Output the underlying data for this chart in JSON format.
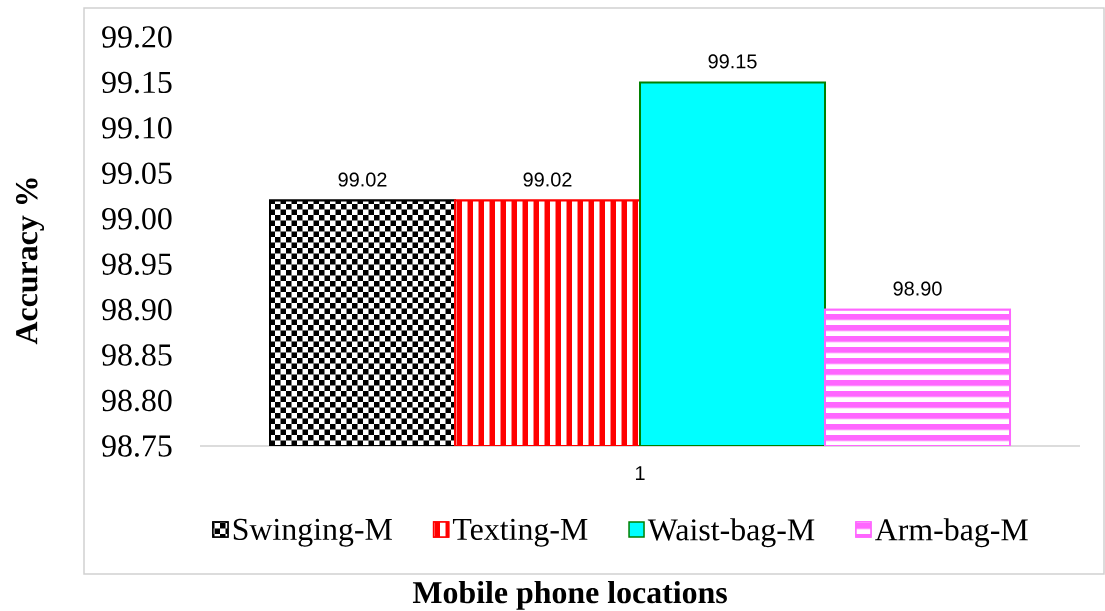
{
  "chart_data": {
    "type": "bar",
    "xlabel": "Mobile phone locations",
    "ylabel": "Accuracy %",
    "categories": [
      "1"
    ],
    "series": [
      {
        "name": "Swinging-M",
        "color": "#000000",
        "values": [
          99.02
        ],
        "value_labels": [
          "99.02"
        ]
      },
      {
        "name": "Texting-M",
        "color": "#ff0000",
        "values": [
          99.02
        ],
        "value_labels": [
          "99.02"
        ]
      },
      {
        "name": "Waist-bag-M",
        "color": "#00ffff",
        "values": [
          99.15
        ],
        "value_labels": [
          "99.15"
        ]
      },
      {
        "name": "Arm-bag-M",
        "color": "#ff66ff",
        "values": [
          98.9
        ],
        "value_labels": [
          "98.90"
        ]
      }
    ],
    "ylim": [
      98.75,
      99.2
    ],
    "yticks": [
      98.75,
      {
        "value": 98.8,
        "label": "98.80"
      },
      98.85,
      {
        "value": 98.9,
        "label": "98.90"
      },
      98.95,
      {
        "value": 99,
        "label": "99.00"
      },
      99.05,
      {
        "value": 99.1,
        "label": "99.10"
      },
      99.15,
      {
        "value": 99.2,
        "label": "99.20"
      }
    ],
    "legend": "bottom"
  }
}
